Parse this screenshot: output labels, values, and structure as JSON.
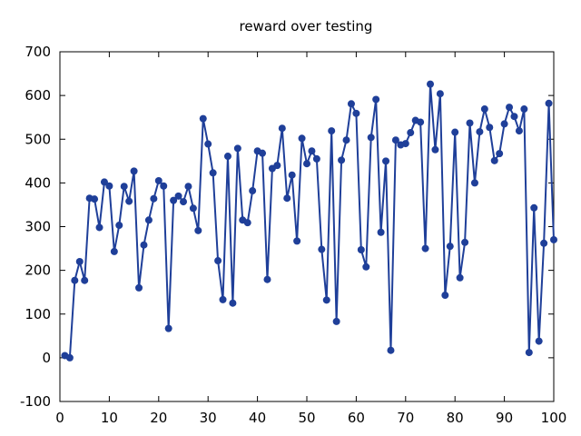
{
  "chart_data": {
    "type": "line",
    "title": "reward over testing",
    "xlabel": "",
    "ylabel": "",
    "xlim": [
      0,
      100
    ],
    "ylim": [
      -100,
      700
    ],
    "xticks": [
      0,
      10,
      20,
      30,
      40,
      50,
      60,
      70,
      80,
      90,
      100
    ],
    "yticks": [
      -100,
      0,
      100,
      200,
      300,
      400,
      500,
      600,
      700
    ],
    "grid": false,
    "legend": "none",
    "series": [
      {
        "color": "#1f3f99",
        "x": [
          1,
          2,
          3,
          4,
          5,
          6,
          7,
          8,
          9,
          10,
          11,
          12,
          13,
          14,
          15,
          16,
          17,
          18,
          19,
          20,
          21,
          22,
          23,
          24,
          25,
          26,
          27,
          28,
          29,
          30,
          31,
          32,
          33,
          34,
          35,
          36,
          37,
          38,
          39,
          40,
          41,
          42,
          43,
          44,
          45,
          46,
          47,
          48,
          49,
          50,
          51,
          52,
          53,
          54,
          55,
          56,
          57,
          58,
          59,
          60,
          61,
          62,
          63,
          64,
          65,
          66,
          67,
          68,
          69,
          70,
          71,
          72,
          73,
          74,
          75,
          76,
          77,
          78,
          79,
          80,
          81,
          82,
          83,
          84,
          85,
          86,
          87,
          88,
          89,
          90,
          91,
          92,
          93,
          94,
          95,
          96,
          97,
          98,
          99,
          100
        ],
        "values": [
          5,
          0,
          177,
          220,
          177,
          365,
          363,
          298,
          402,
          393,
          243,
          303,
          392,
          358,
          427,
          160,
          258,
          315,
          364,
          405,
          393,
          67,
          360,
          370,
          357,
          392,
          342,
          291,
          547,
          489,
          423,
          222,
          133,
          461,
          125,
          479,
          315,
          309,
          382,
          473,
          468,
          179,
          433,
          440,
          525,
          365,
          418,
          267,
          502,
          444,
          473,
          455,
          248,
          132,
          519,
          83,
          452,
          498,
          581,
          559,
          247,
          208,
          504,
          591,
          287,
          450,
          17,
          498,
          487,
          490,
          515,
          543,
          539,
          250,
          626,
          476,
          604,
          143,
          255,
          516,
          183,
          264,
          537,
          400,
          517,
          569,
          527,
          451,
          467,
          535,
          573,
          552,
          519,
          569,
          12,
          343,
          38,
          262,
          582,
          270
        ]
      }
    ]
  }
}
